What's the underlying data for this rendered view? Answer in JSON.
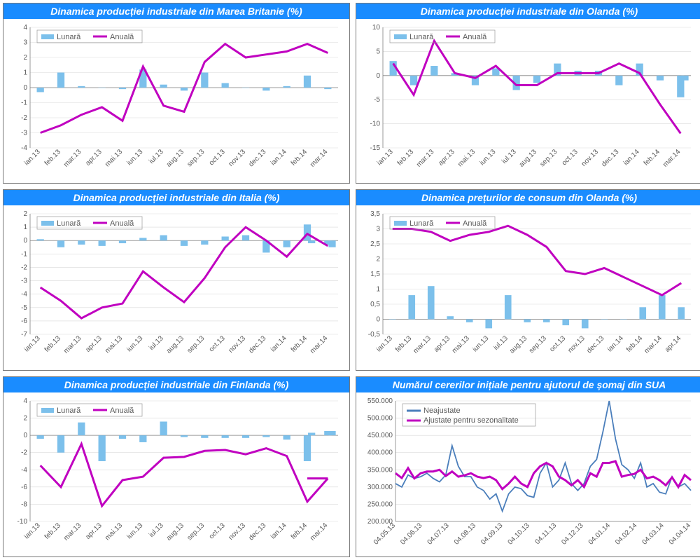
{
  "colors": {
    "title_bg": "#1a8cff",
    "title_fg": "#ffffff",
    "bar": "#7cc0eb",
    "line_annual": "#c000c0",
    "line_blue": "#4a7ebb",
    "grid": "#d9d9d9",
    "axis": "#808080",
    "text": "#595959",
    "bg": "#ffffff"
  },
  "months15": [
    "ian.13",
    "feb.13",
    "mar.13",
    "apr.13",
    "mai.13",
    "iun.13",
    "iul.13",
    "aug.13",
    "sep.13",
    "oct.13",
    "nov.13",
    "dec.13",
    "ian.14",
    "feb.14",
    "mar.14"
  ],
  "months16": [
    "ian.13",
    "feb.13",
    "mar.13",
    "apr.13",
    "mai.13",
    "iun.13",
    "iul.13",
    "aug.13",
    "sep.13",
    "oct.13",
    "nov.13",
    "dec.13",
    "ian.14",
    "feb.14",
    "mar.14",
    "apr.14"
  ],
  "charts": [
    {
      "id": "uk",
      "title": "Dinamica producției industriale din Marea Britanie (%)",
      "type": "barline",
      "legend": [
        {
          "label": "Lunară",
          "kind": "bar",
          "colorKey": "bar"
        },
        {
          "label": "Anuală",
          "kind": "line",
          "colorKey": "line_annual"
        }
      ],
      "xcats": "months15",
      "ylim": [
        -4,
        4
      ],
      "ytick_step": 1,
      "bars": [
        -0.3,
        1.0,
        0.1,
        0.0,
        -0.1,
        1.2,
        0.2,
        -0.2,
        1.0,
        0.3,
        0.0,
        -0.2,
        0.1,
        0.8,
        -0.1
      ],
      "line": [
        -3.0,
        -2.5,
        -1.8,
        -1.3,
        -2.2,
        1.4,
        -1.2,
        -1.6,
        1.7,
        2.9,
        2.0,
        2.2,
        2.4,
        2.9,
        2.3
      ],
      "bar_color": "#7cc0eb",
      "line_color": "#c000c0",
      "bar_width": 0.35,
      "title_fontsize": 14,
      "tick_fontsize": 10
    },
    {
      "id": "nl_ind",
      "title": "Dinamica producției industriale din Olanda (%)",
      "type": "barline",
      "legend": [
        {
          "label": "Lunară",
          "kind": "bar",
          "colorKey": "bar"
        },
        {
          "label": "Anuală",
          "kind": "line",
          "colorKey": "line_annual"
        }
      ],
      "xcats": "months15",
      "ylim": [
        -15,
        10
      ],
      "ytick_step": 5,
      "bars": [
        3.0,
        -2.0,
        2.0,
        0.5,
        -2.0,
        1.5,
        -3.0,
        -1.5,
        2.5,
        1.0,
        1.0,
        -2.0,
        2.5,
        -1.0,
        -4.5
      ],
      "bars2": [
        null,
        null,
        null,
        null,
        null,
        null,
        null,
        null,
        null,
        null,
        null,
        null,
        null,
        null,
        -1.0
      ],
      "line": [
        2.5,
        -4.0,
        7.2,
        0.5,
        -0.5,
        2.0,
        -2.0,
        -2.0,
        0.5,
        0.5,
        0.5,
        2.5,
        0.5,
        -6.0,
        -12.0
      ],
      "bar_color": "#7cc0eb",
      "line_color": "#c000c0",
      "bar_width": 0.35,
      "title_fontsize": 14,
      "tick_fontsize": 10
    },
    {
      "id": "it",
      "title": "Dinamica producției industriale din Italia (%)",
      "type": "barline",
      "legend": [
        {
          "label": "Lunară",
          "kind": "bar",
          "colorKey": "bar"
        },
        {
          "label": "Anuală",
          "kind": "line",
          "colorKey": "line_annual"
        }
      ],
      "xcats": "months15",
      "ylim": [
        -7,
        2
      ],
      "ytick_step": 1,
      "bars": [
        0.1,
        -0.5,
        -0.3,
        -0.4,
        -0.2,
        0.2,
        0.4,
        -0.4,
        -0.3,
        0.3,
        0.4,
        -0.9,
        -0.5,
        1.2,
        -0.3
      ],
      "bars2": [
        null,
        null,
        null,
        null,
        null,
        null,
        null,
        null,
        null,
        null,
        null,
        null,
        null,
        -0.2,
        -0.5
      ],
      "line": [
        -3.5,
        -4.5,
        -5.8,
        -5.0,
        -4.7,
        -2.3,
        -3.5,
        -4.6,
        -2.8,
        -0.5,
        1.0,
        0.0,
        -1.2,
        0.5,
        -0.4
      ],
      "bar_color": "#7cc0eb",
      "line_color": "#c000c0",
      "bar_width": 0.35,
      "title_fontsize": 14,
      "tick_fontsize": 10
    },
    {
      "id": "nl_cpi",
      "title": "Dinamica prețurilor de consum din Olanda (%)",
      "type": "barline",
      "legend": [
        {
          "label": "Lunară",
          "kind": "bar",
          "colorKey": "bar"
        },
        {
          "label": "Anuală",
          "kind": "line",
          "colorKey": "line_annual"
        }
      ],
      "xcats": "months16",
      "ylim": [
        -0.5,
        3.5
      ],
      "ytick_step": 0.5,
      "bars": [
        0.0,
        0.8,
        1.1,
        0.1,
        -0.1,
        -0.3,
        0.8,
        -0.1,
        -0.1,
        -0.2,
        -0.3,
        0.0,
        0.0,
        0.4,
        0.8,
        0.4
      ],
      "line": [
        3.0,
        3.0,
        2.9,
        2.6,
        2.8,
        2.9,
        3.1,
        2.8,
        2.4,
        1.6,
        1.5,
        1.7,
        1.4,
        1.1,
        0.8,
        1.2
      ],
      "bar_color": "#7cc0eb",
      "line_color": "#c000c0",
      "bar_width": 0.35,
      "title_fontsize": 14,
      "tick_fontsize": 10
    },
    {
      "id": "fi",
      "title": "Dinamica producției industriale din Finlanda (%)",
      "type": "barline",
      "legend": [
        {
          "label": "Lunară",
          "kind": "bar",
          "colorKey": "bar"
        },
        {
          "label": "Anuală",
          "kind": "line",
          "colorKey": "line_annual"
        }
      ],
      "xcats": "months15",
      "ylim": [
        -10,
        4
      ],
      "ytick_step": 2,
      "bars": [
        -0.4,
        -2.0,
        1.5,
        -3.0,
        -0.4,
        -0.8,
        1.6,
        -0.2,
        -0.3,
        -0.3,
        -0.3,
        -0.2,
        -0.5,
        -3.0,
        0.5
      ],
      "bars2": [
        null,
        null,
        null,
        null,
        null,
        null,
        null,
        null,
        null,
        null,
        null,
        null,
        null,
        0.3,
        0.5
      ],
      "line": [
        -3.5,
        -6.0,
        -1.0,
        -8.2,
        -5.2,
        -4.8,
        -2.6,
        -2.5,
        -1.8,
        -1.7,
        -2.2,
        -1.5,
        -2.4,
        -7.7,
        -5.0
      ],
      "line2": [
        null,
        null,
        null,
        null,
        null,
        null,
        null,
        null,
        null,
        null,
        null,
        null,
        null,
        -5.0,
        -5.0
      ],
      "bar_color": "#7cc0eb",
      "line_color": "#c000c0",
      "bar_width": 0.35,
      "title_fontsize": 14,
      "tick_fontsize": 10
    },
    {
      "id": "us_jobless",
      "title": "Numărul cererilor inițiale pentru ajutorul de șomaj din SUA",
      "type": "twoline",
      "legend": [
        {
          "label": "Neajustate",
          "kind": "line",
          "colorKey": "line_blue"
        },
        {
          "label": "Ajustate pentru sezonalitate",
          "kind": "line",
          "colorKey": "line_annual"
        }
      ],
      "xcats_explicit": [
        "04.05.13",
        "04.06.13",
        "04.07.13",
        "04.08.13",
        "04.09.13",
        "04.10.13",
        "04.11.13",
        "04.12.13",
        "04.01.14",
        "04.02.14",
        "04.03.14",
        "04.04.14"
      ],
      "ylim": [
        200000,
        550000
      ],
      "ytick_step": 50000,
      "ytick_format": "thousand_dot",
      "n_points": 48,
      "line_blue": [
        310,
        300,
        335,
        325,
        330,
        340,
        325,
        315,
        335,
        420,
        360,
        330,
        330,
        300,
        290,
        265,
        280,
        230,
        280,
        300,
        295,
        275,
        270,
        340,
        370,
        300,
        320,
        370,
        310,
        290,
        310,
        360,
        380,
        460,
        550,
        440,
        365,
        350,
        325,
        370,
        300,
        310,
        285,
        280,
        330,
        300,
        310,
        290
      ],
      "line_purple": [
        340,
        326,
        355,
        325,
        340,
        345,
        345,
        350,
        332,
        345,
        330,
        334,
        340,
        330,
        326,
        330,
        320,
        294,
        310,
        330,
        310,
        300,
        340,
        360,
        370,
        360,
        330,
        320,
        305,
        320,
        300,
        340,
        330,
        370,
        370,
        375,
        330,
        335,
        338,
        350,
        325,
        330,
        320,
        305,
        328,
        300,
        335,
        320
      ],
      "scale": 1000,
      "colors": {
        "blue": "#4a7ebb",
        "purple": "#c000c0"
      },
      "line_width": 1.8,
      "title_fontsize": 14,
      "tick_fontsize": 10
    }
  ]
}
